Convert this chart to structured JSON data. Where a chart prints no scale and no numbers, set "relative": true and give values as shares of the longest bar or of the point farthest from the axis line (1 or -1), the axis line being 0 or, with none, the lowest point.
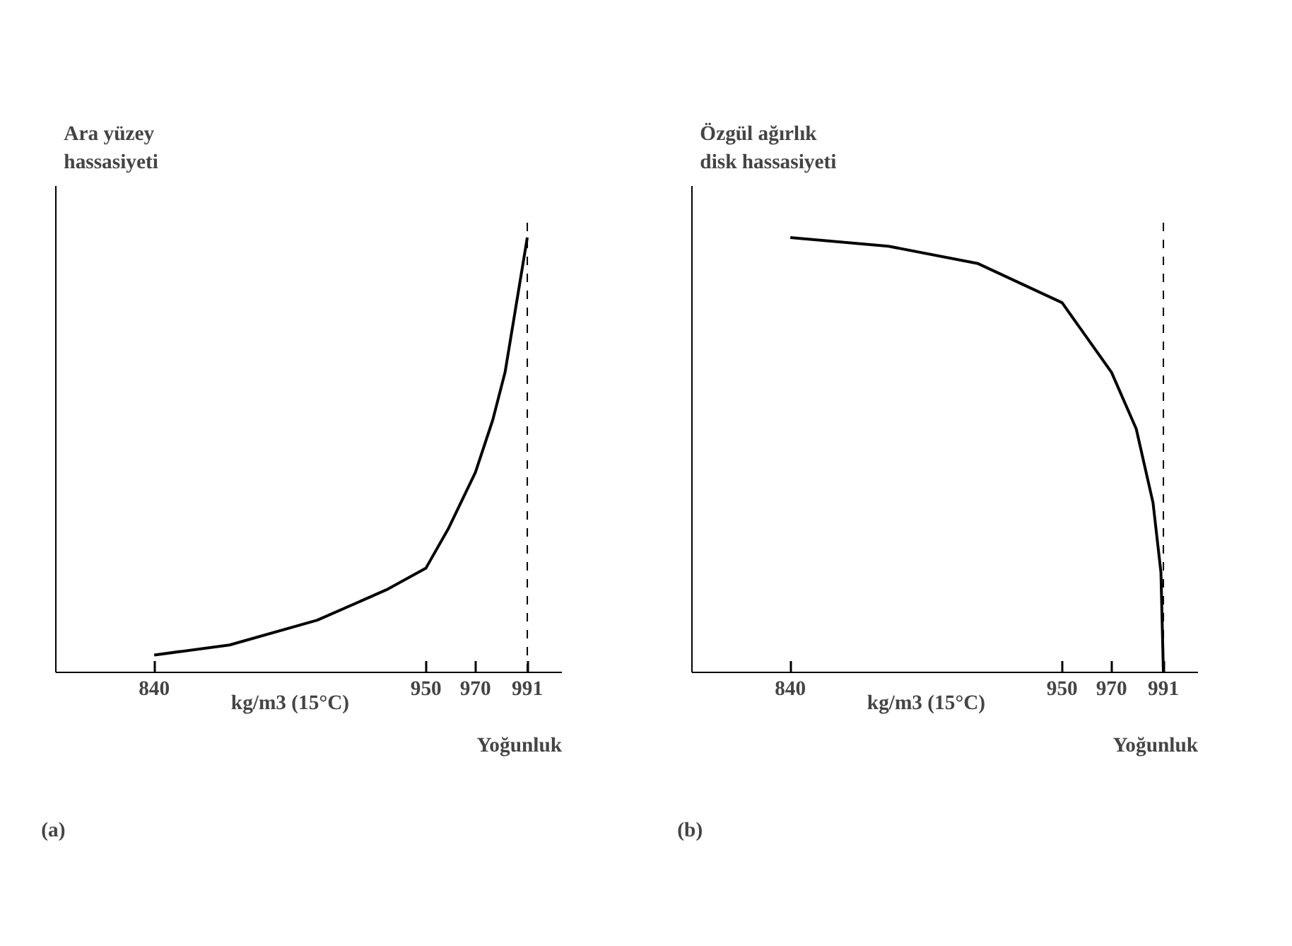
{
  "chart_data": [
    {
      "type": "line",
      "relative": true,
      "ylabel": "Ara yüzey hassasiyeti",
      "xlabel": "Yoğunluk",
      "annotations": [
        "kg/m3 (15°C)",
        "(a)"
      ],
      "x": [
        840,
        870.5,
        906,
        934,
        950,
        959,
        970,
        977,
        982,
        991
      ],
      "xlim": [
        800,
        1005
      ],
      "series": [
        {
          "color": "#000000",
          "values": [
            0.04,
            0.063,
            0.12,
            0.19,
            0.24,
            0.33,
            0.46,
            0.58,
            0.69,
            1.0
          ]
        }
      ],
      "xticks": [
        840,
        950,
        970,
        991
      ],
      "ref_lines": [
        {
          "axis": "x",
          "value": 991,
          "line_style": "dashed",
          "color": "#000000"
        }
      ],
      "grid": false,
      "tick_labels": "x",
      "line_style": "solid"
    },
    {
      "type": "line",
      "relative": true,
      "ylabel": "Özgül ağırlık disk hassasiyeti",
      "xlabel": "Yoğunluk",
      "annotations": [
        "kg/m3 (15°C)",
        "(b)"
      ],
      "x": [
        840,
        879.7,
        916,
        950,
        970,
        980,
        986.8,
        990,
        991
      ],
      "xlim": [
        800,
        1005
      ],
      "series": [
        {
          "color": "#000000",
          "values": [
            1.0,
            0.98,
            0.94,
            0.85,
            0.69,
            0.56,
            0.39,
            0.23,
            0.0
          ]
        }
      ],
      "xticks": [
        840,
        950,
        970,
        991
      ],
      "ref_lines": [
        {
          "axis": "x",
          "value": 991,
          "line_style": "dashed",
          "color": "#000000"
        }
      ],
      "grid": false,
      "tick_labels": "x",
      "line_style": "solid"
    }
  ]
}
